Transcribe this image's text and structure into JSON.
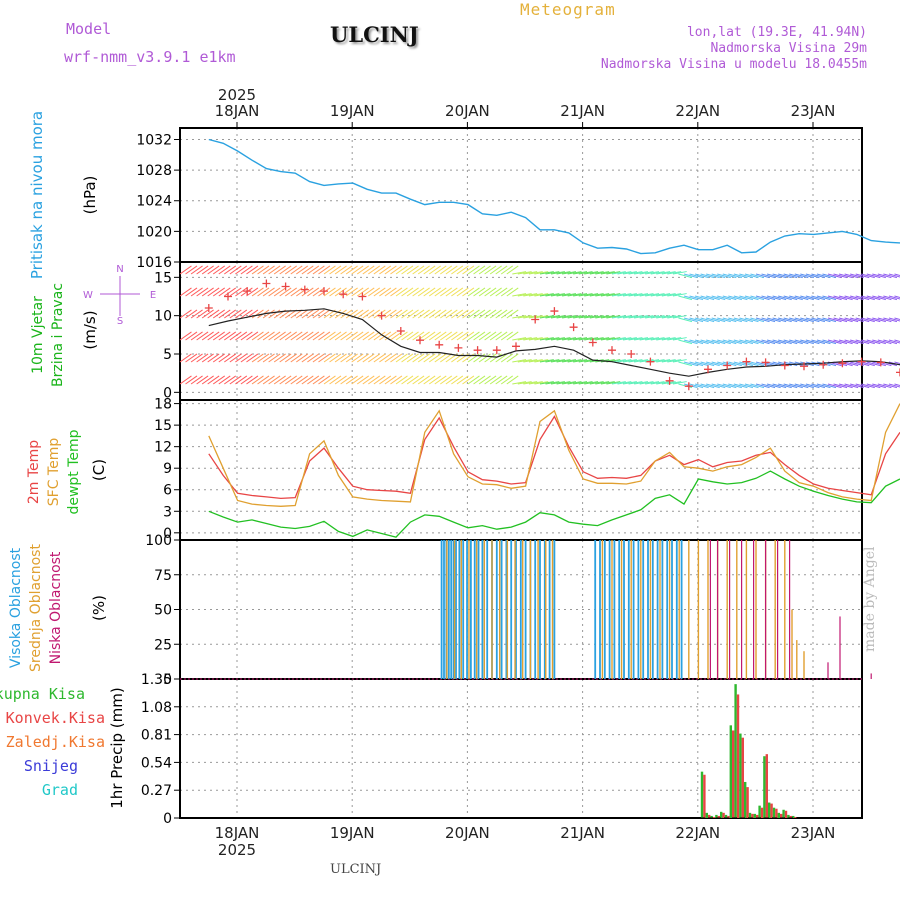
{
  "header": {
    "model_label": "Model",
    "model_name": "wrf-nmm_v3.9.1 e1km",
    "station": "ULCINJ",
    "meteogram": "Meteogram",
    "lonlat": "lon,lat (19.3E, 41.94N)",
    "altitude": "Nadmorska Visina 29m",
    "model_altitude": "Nadmorska Visina u modelu 18.0455m"
  },
  "footer": {
    "station": "ULCINJ",
    "credit": "made by Angel"
  },
  "colors": {
    "pressure": "#2aa1e0",
    "wind_label": "#1ab41a",
    "temp2m": "#e84545",
    "sfc": "#e0a030",
    "dewpt": "#22c022",
    "high_cloud": "#2aa1e0",
    "mid_cloud": "#e0a030",
    "low_cloud": "#c01870",
    "total_precip": "#2eb82e",
    "conv_precip": "#e84545",
    "frozen": "#f07830",
    "snow": "#3b3bd8",
    "graupel": "#20c8c8",
    "accent": "#b05ad6"
  },
  "time_axis": {
    "year": "2025",
    "days": [
      "18JAN",
      "19JAN",
      "20JAN",
      "21JAN",
      "22JAN",
      "23JAN"
    ]
  },
  "chart_data": [
    {
      "type": "line",
      "panel": "pressure",
      "ylabel_main": "Pritisak na nivou mora",
      "unit": "(hPa)",
      "yticks": [
        "1032",
        "1028",
        "1024",
        "1020",
        "1016"
      ],
      "ylim": [
        1016,
        1033.5
      ],
      "x_hours": [
        0,
        3,
        6,
        9,
        12,
        15,
        18,
        21,
        24,
        27,
        30,
        33,
        36,
        39,
        42,
        45,
        48,
        51,
        54,
        57,
        60,
        63,
        66,
        69,
        72,
        75,
        78,
        81,
        84,
        87,
        90,
        93,
        96,
        99,
        102,
        105,
        108,
        111,
        114,
        117,
        120,
        123,
        126,
        129,
        132,
        135,
        138,
        141,
        144
      ],
      "series": [
        {
          "values": [
            1032,
            1031.5,
            1030.5,
            1029.3,
            1028.2,
            1027.8,
            1027.6,
            1026.5,
            1026,
            1026.2,
            1026.3,
            1025.5,
            1025,
            1025,
            1024.2,
            1023.5,
            1023.8,
            1023.8,
            1023.5,
            1022.3,
            1022.1,
            1022.5,
            1021.8,
            1020.2,
            1020.2,
            1019.8,
            1018.5,
            1017.8,
            1017.9,
            1017.7,
            1017.1,
            1017.2,
            1017.8,
            1018.2,
            1017.6,
            1017.6,
            1018.2,
            1017.2,
            1017.3,
            1018.6,
            1019.4,
            1019.7,
            1019.6,
            1019.8,
            1020,
            1019.6,
            1018.8,
            1018.6,
            1018.5
          ]
        }
      ]
    },
    {
      "type": "line",
      "panel": "wind",
      "ylabel_main": "10m Vjetar",
      "ylabel_sub": "Brzina i Pravac",
      "unit": "(m/s)",
      "compass": [
        "N",
        "S",
        "W",
        "E"
      ],
      "yticks": [
        "15",
        "10",
        "5",
        "0"
      ],
      "ylim": [
        -1,
        17
      ],
      "x_hours": [
        0,
        4,
        8,
        12,
        16,
        20,
        24,
        28,
        32,
        36,
        40,
        44,
        48,
        52,
        56,
        60,
        64,
        68,
        72,
        76,
        80,
        84,
        88,
        92,
        96,
        100,
        104,
        108,
        112,
        116,
        120,
        124,
        128,
        132,
        136,
        140,
        144
      ],
      "series": [
        {
          "values": [
            8.7,
            9.3,
            9.8,
            10.3,
            10.6,
            10.7,
            10.9,
            10.3,
            9.5,
            7.5,
            6,
            5.2,
            5.2,
            4.8,
            4.8,
            4.6,
            5.4,
            5.6,
            6,
            5.5,
            4.2,
            4,
            3.5,
            3,
            2.5,
            2.1,
            2.6,
            3,
            3.3,
            3.4,
            3.6,
            3.7,
            3.8,
            4,
            4.1,
            4,
            3.6
          ]
        },
        {
          "values": [
            11,
            12.5,
            13.2,
            14.2,
            13.8,
            13.4,
            13.2,
            12.8,
            12.5,
            10,
            8,
            6.8,
            6.2,
            5.8,
            5.5,
            5.5,
            6,
            9.5,
            10.6,
            8.5,
            6.5,
            5.5,
            5,
            4,
            1.5,
            0.8,
            3,
            3.5,
            4,
            3.9,
            3.5,
            3.4,
            3.6,
            3.8,
            4,
            3.9,
            2.6
          ]
        }
      ]
    },
    {
      "type": "line",
      "panel": "temperature",
      "ylabel_lines": [
        "2m Temp",
        "SFC Temp",
        "dewpt Temp"
      ],
      "unit": "(C)",
      "yticks": [
        "18",
        "15",
        "12",
        "9",
        "6",
        "3",
        "0"
      ],
      "ylim": [
        -1,
        18.5
      ],
      "x_hours": [
        0,
        3,
        6,
        9,
        12,
        15,
        18,
        21,
        24,
        27,
        30,
        33,
        36,
        39,
        42,
        45,
        48,
        51,
        54,
        57,
        60,
        63,
        66,
        69,
        72,
        75,
        78,
        81,
        84,
        87,
        90,
        93,
        96,
        99,
        102,
        105,
        108,
        111,
        114,
        117,
        120,
        123,
        126,
        129,
        132,
        135,
        138,
        141,
        144
      ],
      "series": [
        {
          "values": [
            11,
            8,
            5.5,
            5.2,
            5,
            4.8,
            4.9,
            10,
            11.8,
            9,
            6.5,
            6,
            5.9,
            5.8,
            5.5,
            13,
            16,
            12,
            8.5,
            7.4,
            7.2,
            6.8,
            7,
            13,
            16.2,
            12,
            8.5,
            7.6,
            7.7,
            7.6,
            8,
            10,
            10.8,
            9.5,
            10.2,
            9.2,
            9.8,
            10,
            10.8,
            11.2,
            9.5,
            8,
            6.8,
            6.2,
            5.9,
            5.6,
            5.3,
            11,
            14
          ]
        },
        {
          "values": [
            13.5,
            9,
            4.5,
            4,
            3.8,
            3.7,
            3.8,
            11,
            12.8,
            8,
            5,
            4.7,
            4.5,
            4.4,
            4.3,
            14,
            17,
            11,
            7.8,
            6.8,
            6.7,
            6.2,
            6.5,
            15.5,
            17,
            11.5,
            7.5,
            6.9,
            6.9,
            6.8,
            7.2,
            10,
            11.2,
            9.2,
            9,
            8.6,
            9.2,
            9.5,
            10.5,
            11.8,
            8.6,
            7,
            6.5,
            5.6,
            5,
            4.7,
            4.5,
            14,
            18
          ]
        },
        {
          "values": [
            3,
            2.2,
            1.5,
            1.8,
            1.3,
            0.8,
            0.6,
            0.9,
            1.6,
            0.2,
            -0.5,
            0.4,
            -0.1,
            -0.6,
            1.5,
            2.5,
            2.3,
            1.5,
            0.7,
            1,
            0.5,
            0.8,
            1.5,
            2.8,
            2.5,
            1.5,
            1.2,
            1,
            1.8,
            2.5,
            3.2,
            4.8,
            5.3,
            4,
            7.5,
            7.1,
            6.8,
            7,
            7.6,
            8.6,
            7.5,
            6.5,
            5.8,
            5.2,
            4.7,
            4.3,
            4.2,
            6.5,
            7.5
          ]
        }
      ]
    },
    {
      "type": "bar",
      "panel": "clouds",
      "ylabel_lines": [
        "Visoka Oblacnost",
        "Srednja Oblacnost",
        "Niska Oblacnost"
      ],
      "unit": "(%)",
      "yticks": [
        "100",
        "75",
        "50",
        "25",
        "0"
      ],
      "ylim": [
        0,
        100
      ],
      "high_hours": [
        48.5,
        49,
        49.5,
        50,
        50.5,
        51,
        51.5,
        52.2,
        53,
        53.8,
        54.6,
        55.4,
        56.2,
        57,
        58,
        59,
        60,
        61,
        62,
        63,
        64,
        65,
        66,
        67,
        68,
        69,
        70,
        71,
        72,
        80.5,
        81.5,
        82.5,
        83.5,
        84.5,
        85.5,
        86.5,
        87.5,
        88.5,
        89.5,
        90.5,
        91.5,
        92.5,
        93.5,
        94.5,
        95.5,
        96.5,
        97.5,
        98.5
      ],
      "mid_hours": [
        49.6,
        51.2,
        52.6,
        54.2,
        55.8,
        57.4,
        59,
        60.6,
        62.2,
        63.8,
        65.4,
        67,
        68.6,
        70.2,
        71.6,
        82,
        84,
        86,
        88,
        90,
        92,
        94,
        96,
        98,
        100,
        102,
        104,
        106,
        108,
        110,
        112,
        114,
        116,
        118,
        120
      ],
      "low_hours": [
        104.5,
        106,
        108.5,
        111,
        113.5,
        116,
        118.5,
        121
      ],
      "low_small": [
        [
          129,
          12
        ],
        [
          131.5,
          45
        ],
        [
          138,
          4
        ]
      ],
      "mid_small": [
        [
          121.5,
          50
        ],
        [
          122.5,
          28
        ],
        [
          124,
          20
        ]
      ]
    },
    {
      "type": "bar",
      "panel": "precip",
      "ylabel_main": "1hr Precip",
      "unit": "(mm)",
      "legend": [
        "Ukupna Kisa",
        "Konvek.Kisa",
        "Zaledj.Kisa",
        "Snijeg",
        "Grad"
      ],
      "yticks": [
        "1.35",
        "1.08",
        "0.81",
        "0.54",
        "0.27",
        "0"
      ],
      "ylim": [
        0,
        1.35
      ],
      "x_hours": [
        103,
        104,
        105,
        106,
        107,
        108,
        109,
        110,
        111,
        112,
        113,
        114,
        115,
        116,
        117,
        118,
        119,
        120,
        121,
        122
      ],
      "total": [
        0.45,
        0.05,
        0.02,
        0.03,
        0.06,
        0.03,
        0.9,
        1.3,
        0.82,
        0.35,
        0.05,
        0.04,
        0.12,
        0.6,
        0.15,
        0.1,
        0.05,
        0.08,
        0.03,
        0.02
      ],
      "convective": [
        0.42,
        0.03,
        0.01,
        0.02,
        0.05,
        0.02,
        0.85,
        1.2,
        0.78,
        0.3,
        0.04,
        0.03,
        0.1,
        0.62,
        0.14,
        0.09,
        0.04,
        0.07,
        0.02,
        0.01
      ]
    }
  ]
}
